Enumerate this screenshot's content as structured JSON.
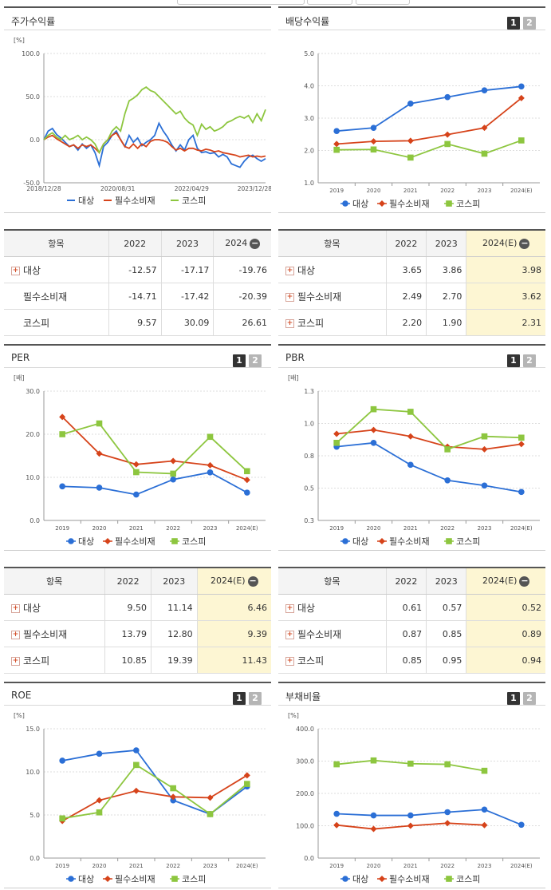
{
  "colors": {
    "series1": "#2b6fd6",
    "series2": "#d6431a",
    "series3": "#8dc63f"
  },
  "legend": [
    "대상",
    "필수소비재",
    "코스피"
  ],
  "tabs": [
    "1",
    "2"
  ],
  "panels": {
    "stock_return": {
      "title": "주가수익률",
      "unit": "[%]"
    },
    "dividend": {
      "title": "배당수익률",
      "unit": ""
    },
    "per": {
      "title": "PER",
      "unit": "[배]"
    },
    "pbr": {
      "title": "PBR",
      "unit": "[배]"
    },
    "roe": {
      "title": "ROE",
      "unit": "[%]"
    },
    "debt": {
      "title": "부채비율",
      "unit": "[%]"
    }
  },
  "tables": {
    "stock_return": {
      "headers": [
        "항목",
        "2022",
        "2023",
        "2024"
      ],
      "rows": [
        {
          "label": "대상",
          "v": [
            "-12.57",
            "-17.17",
            "-19.76"
          ]
        },
        {
          "label": "필수소비재",
          "v": [
            "-14.71",
            "-17.42",
            "-20.39"
          ]
        },
        {
          "label": "코스피",
          "v": [
            "9.57",
            "30.09",
            "26.61"
          ]
        }
      ]
    },
    "dividend": {
      "headers": [
        "항목",
        "2022",
        "2023",
        "2024(E)"
      ],
      "rows": [
        {
          "label": "대상",
          "v": [
            "3.65",
            "3.86",
            "3.98"
          ]
        },
        {
          "label": "필수소비재",
          "v": [
            "2.49",
            "2.70",
            "3.62"
          ]
        },
        {
          "label": "코스피",
          "v": [
            "2.20",
            "1.90",
            "2.31"
          ]
        }
      ]
    },
    "per": {
      "headers": [
        "항목",
        "2022",
        "2023",
        "2024(E)"
      ],
      "rows": [
        {
          "label": "대상",
          "v": [
            "9.50",
            "11.14",
            "6.46"
          ]
        },
        {
          "label": "필수소비재",
          "v": [
            "13.79",
            "12.80",
            "9.39"
          ]
        },
        {
          "label": "코스피",
          "v": [
            "10.85",
            "19.39",
            "11.43"
          ]
        }
      ]
    },
    "pbr": {
      "headers": [
        "항목",
        "2022",
        "2023",
        "2024(E)"
      ],
      "rows": [
        {
          "label": "대상",
          "v": [
            "0.61",
            "0.57",
            "0.52"
          ]
        },
        {
          "label": "필수소비재",
          "v": [
            "0.87",
            "0.85",
            "0.89"
          ]
        },
        {
          "label": "코스피",
          "v": [
            "0.85",
            "0.95",
            "0.94"
          ]
        }
      ]
    }
  },
  "chart_data": [
    {
      "id": "stock_return",
      "type": "line",
      "title": "주가수익률",
      "ylabel": "[%]",
      "ylim": [
        -50,
        100
      ],
      "yticks": [
        "100.0",
        "50.0",
        "0.0",
        "-50.0"
      ],
      "xticks": [
        "2018/12/28",
        "2020/08/31",
        "2022/04/29",
        "2023/12/28"
      ],
      "series": [
        {
          "name": "대상",
          "values": [
            0,
            10,
            13,
            6,
            2,
            -3,
            -8,
            -6,
            -12,
            -5,
            -10,
            -6,
            -15,
            -30,
            -8,
            -3,
            5,
            10,
            0,
            -8,
            5,
            -3,
            2,
            -7,
            -3,
            0,
            5,
            19,
            10,
            3,
            -6,
            -13,
            -6,
            -12,
            0,
            5,
            -10,
            -15,
            -14,
            -16,
            -15,
            -20,
            -17,
            -20,
            -28,
            -30,
            -32,
            -25,
            -20,
            -18,
            -22,
            -25,
            -22
          ]
        },
        {
          "name": "필수소비재",
          "values": [
            0,
            3,
            5,
            1,
            -2,
            -5,
            -8,
            -6,
            -10,
            -6,
            -8,
            -6,
            -10,
            -15,
            -5,
            0,
            5,
            8,
            0,
            -8,
            -10,
            -5,
            -10,
            -5,
            -8,
            -2,
            0,
            0,
            -1,
            -3,
            -8,
            -12,
            -10,
            -13,
            -10,
            -10,
            -12,
            -13,
            -11,
            -12,
            -14,
            -13,
            -15,
            -16,
            -17,
            -18,
            -20,
            -19,
            -18,
            -20,
            -19,
            -20,
            -19
          ]
        },
        {
          "name": "코스피",
          "values": [
            0,
            5,
            8,
            3,
            0,
            5,
            0,
            2,
            5,
            0,
            3,
            0,
            -5,
            -15,
            -5,
            0,
            10,
            15,
            10,
            30,
            45,
            48,
            52,
            58,
            61,
            57,
            55,
            50,
            45,
            40,
            35,
            30,
            33,
            25,
            20,
            17,
            5,
            18,
            12,
            15,
            10,
            12,
            15,
            20,
            22,
            25,
            27,
            25,
            28,
            20,
            30,
            22,
            35
          ]
        }
      ]
    },
    {
      "id": "dividend",
      "type": "line",
      "title": "배당수익률",
      "ylim": [
        1,
        5
      ],
      "yticks": [
        "5.0",
        "4.0",
        "3.0",
        "2.0",
        "1.0"
      ],
      "categories": [
        "2019",
        "2020",
        "2021",
        "2022",
        "2023",
        "2024(E)"
      ],
      "series": [
        {
          "name": "대상",
          "values": [
            2.6,
            2.7,
            3.45,
            3.65,
            3.86,
            3.98
          ]
        },
        {
          "name": "필수소비재",
          "values": [
            2.2,
            2.28,
            2.3,
            2.49,
            2.7,
            3.62
          ]
        },
        {
          "name": "코스피",
          "values": [
            2.02,
            2.03,
            1.78,
            2.2,
            1.9,
            2.31
          ]
        }
      ]
    },
    {
      "id": "per",
      "type": "line",
      "title": "PER",
      "ylabel": "[배]",
      "ylim": [
        0,
        30
      ],
      "yticks": [
        "30.0",
        "20.0",
        "10.0",
        "0.0"
      ],
      "categories": [
        "2019",
        "2020",
        "2021",
        "2022",
        "2023",
        "2024(E)"
      ],
      "series": [
        {
          "name": "대상",
          "values": [
            7.9,
            7.6,
            6.0,
            9.5,
            11.14,
            6.46
          ]
        },
        {
          "name": "필수소비재",
          "values": [
            24.0,
            15.5,
            13.0,
            13.79,
            12.8,
            9.39
          ]
        },
        {
          "name": "코스피",
          "values": [
            20.0,
            22.5,
            11.2,
            10.85,
            19.39,
            11.43
          ]
        }
      ]
    },
    {
      "id": "pbr",
      "type": "line",
      "title": "PBR",
      "ylabel": "[배]",
      "ylim": [
        0.3,
        1.3
      ],
      "yticks": [
        "1.3",
        "1.0",
        "0.8",
        "0.5",
        "0.3"
      ],
      "categories": [
        "2019",
        "2020",
        "2021",
        "2022",
        "2023",
        "2024(E)"
      ],
      "series": [
        {
          "name": "대상",
          "values": [
            0.87,
            0.9,
            0.73,
            0.61,
            0.57,
            0.52
          ]
        },
        {
          "name": "필수소비재",
          "values": [
            0.97,
            1.0,
            0.95,
            0.87,
            0.85,
            0.89
          ]
        },
        {
          "name": "코스피",
          "values": [
            0.9,
            1.16,
            1.14,
            0.85,
            0.95,
            0.94
          ]
        }
      ]
    },
    {
      "id": "roe",
      "type": "line",
      "title": "ROE",
      "ylabel": "[%]",
      "ylim": [
        0,
        15
      ],
      "yticks": [
        "15.0",
        "10.0",
        "5.0",
        "0.0"
      ],
      "categories": [
        "2019",
        "2020",
        "2021",
        "2022",
        "2023",
        "2024(E)"
      ],
      "series": [
        {
          "name": "대상",
          "values": [
            11.3,
            12.1,
            12.5,
            6.7,
            5.1,
            8.3
          ]
        },
        {
          "name": "필수소비재",
          "values": [
            4.3,
            6.7,
            7.8,
            7.1,
            7.0,
            9.6
          ]
        },
        {
          "name": "코스피",
          "values": [
            4.6,
            5.3,
            10.8,
            8.1,
            5.1,
            8.6
          ]
        }
      ]
    },
    {
      "id": "debt",
      "type": "line",
      "title": "부채비율",
      "ylabel": "[%]",
      "ylim": [
        0,
        400
      ],
      "yticks": [
        "400.0",
        "300.0",
        "200.0",
        "100.0",
        "0.0"
      ],
      "categories": [
        "2019",
        "2020",
        "2021",
        "2022",
        "2023",
        "2024(E)"
      ],
      "series": [
        {
          "name": "대상",
          "values": [
            137,
            132,
            132,
            142,
            150,
            103
          ]
        },
        {
          "name": "필수소비재",
          "values": [
            102,
            90,
            100,
            108,
            102,
            null
          ]
        },
        {
          "name": "코스피",
          "values": [
            290,
            302,
            292,
            290,
            270,
            null
          ]
        }
      ]
    }
  ]
}
